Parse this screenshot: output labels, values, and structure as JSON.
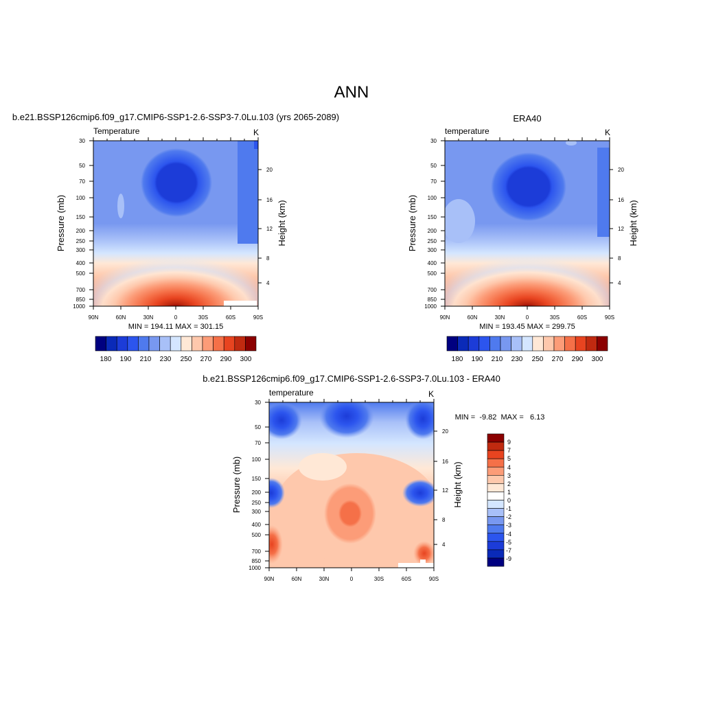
{
  "page_title": "ANN",
  "colors": {
    "abs_scale": [
      "#000080",
      "#0a2ab8",
      "#1c3cd8",
      "#2c55ee",
      "#4f7aee",
      "#7898f0",
      "#a8c0f8",
      "#d4e6ff",
      "#ffe8d6",
      "#fec8ac",
      "#fc9c78",
      "#f57048",
      "#e84420",
      "#c02a10",
      "#8b0000"
    ],
    "diff_scale": [
      "#000080",
      "#0a2ab8",
      "#1c3cd8",
      "#2c55ee",
      "#4f7aee",
      "#7898f0",
      "#a8c0f8",
      "#d4e6ff",
      "#ffffff",
      "#ffe8d6",
      "#fec8ac",
      "#fc9c78",
      "#f57048",
      "#e84420",
      "#c02a10",
      "#8b0000"
    ]
  },
  "chart_data": [
    {
      "type": "heatmap",
      "panel": "model",
      "title": "b.e21.BSSP126cmip6.f09_g17.CMIP6-SSP1-2.6-SSP3-7.0Lu.103 (yrs 2065-2089)",
      "left_label": "Temperature",
      "units": "K",
      "ylabel": "Pressure (mb)",
      "ylabel_right": "Height (km)",
      "x_ticks": [
        "90N",
        "60N",
        "30N",
        "0",
        "30S",
        "60S",
        "90S"
      ],
      "y_ticks": [
        "30",
        "50",
        "70",
        "100",
        "150",
        "200",
        "250",
        "300",
        "400",
        "500",
        "700",
        "850",
        "1000"
      ],
      "y2_ticks": [
        "20",
        "16",
        "12",
        "8",
        "4"
      ],
      "stats": "MIN = 194.11  MAX = 301.15",
      "min": 194.11,
      "max": 301.15,
      "colorbar_labels": [
        "180",
        "190",
        "210",
        "230",
        "250",
        "270",
        "290",
        "300"
      ]
    },
    {
      "type": "heatmap",
      "panel": "obs",
      "title": "ERA40",
      "left_label": "temperature",
      "units": "K",
      "ylabel": "Pressure (mb)",
      "ylabel_right": "Height (km)",
      "x_ticks": [
        "90N",
        "60N",
        "30N",
        "0",
        "30S",
        "60S",
        "90S"
      ],
      "y_ticks": [
        "30",
        "50",
        "70",
        "100",
        "150",
        "200",
        "250",
        "300",
        "400",
        "500",
        "700",
        "850",
        "1000"
      ],
      "y2_ticks": [
        "20",
        "16",
        "12",
        "8",
        "4"
      ],
      "stats": "MIN = 193.45  MAX = 299.75",
      "min": 193.45,
      "max": 299.75,
      "colorbar_labels": [
        "180",
        "190",
        "210",
        "230",
        "250",
        "270",
        "290",
        "300"
      ]
    },
    {
      "type": "heatmap",
      "panel": "difference",
      "title": "b.e21.BSSP126cmip6.f09_g17.CMIP6-SSP1-2.6-SSP3-7.0Lu.103 - ERA40",
      "left_label": "temperature",
      "units": "K",
      "ylabel": "Pressure (mb)",
      "ylabel_right": "Height (km)",
      "x_ticks": [
        "90N",
        "60N",
        "30N",
        "0",
        "30S",
        "60S",
        "90S"
      ],
      "y_ticks": [
        "30",
        "50",
        "70",
        "100",
        "150",
        "200",
        "250",
        "300",
        "400",
        "500",
        "700",
        "850",
        "1000"
      ],
      "y2_ticks": [
        "20",
        "16",
        "12",
        "8",
        "4"
      ],
      "stats": "MIN =  -9.82  MAX =   6.13",
      "min": -9.82,
      "max": 6.13,
      "colorbar_labels": [
        "9",
        "7",
        "5",
        "4",
        "3",
        "2",
        "1",
        "0",
        "-1",
        "-2",
        "-3",
        "-4",
        "-5",
        "-7",
        "-9"
      ]
    }
  ]
}
